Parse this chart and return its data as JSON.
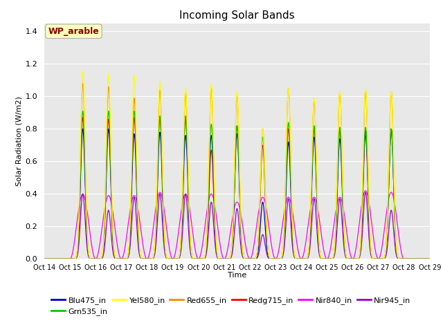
{
  "title": "Incoming Solar Bands",
  "xlabel": "Time",
  "ylabel": "Solar Radiation (W/m2)",
  "ylim": [
    0,
    1.45
  ],
  "yticks": [
    0.0,
    0.2,
    0.4,
    0.6,
    0.8,
    1.0,
    1.2,
    1.4
  ],
  "xtick_labels": [
    "Oct 14",
    "Oct 15",
    "Oct 16",
    "Oct 17",
    "Oct 18",
    "Oct 19",
    "Oct 20",
    "Oct 21",
    "Oct 22",
    "Oct 23",
    "Oct 24",
    "Oct 25",
    "Oct 26",
    "Oct 27",
    "Oct 28",
    "Oct 29"
  ],
  "annotation_text": "WP_arable",
  "annotation_color": "#8B0000",
  "annotation_bg": "#FFFFC0",
  "band_colors": {
    "Blu475_in": "#0000CC",
    "Grn535_in": "#00CC00",
    "Yel580_in": "#FFFF00",
    "Red655_in": "#FF8800",
    "Redg715_in": "#FF0000",
    "Nir840_in": "#FF00FF",
    "Nir945_in": "#9900CC"
  },
  "peak_heights": {
    "Yel580_in": [
      0.0,
      1.16,
      1.14,
      1.13,
      1.09,
      1.05,
      1.08,
      1.03,
      0.8,
      1.05,
      0.99,
      1.03,
      1.05,
      1.03,
      0.0,
      0.0
    ],
    "Red655_in": [
      0.0,
      1.08,
      1.06,
      0.99,
      1.04,
      1.02,
      1.05,
      1.0,
      0.8,
      1.05,
      0.97,
      1.03,
      1.04,
      1.03,
      0.0,
      0.0
    ],
    "Redg715_in": [
      0.0,
      0.87,
      0.86,
      0.87,
      0.87,
      0.86,
      0.67,
      0.82,
      0.7,
      0.8,
      0.8,
      0.8,
      0.76,
      0.8,
      0.0,
      0.0
    ],
    "Nir840_in": [
      0.0,
      0.4,
      0.39,
      0.39,
      0.41,
      0.4,
      0.4,
      0.35,
      0.38,
      0.38,
      0.38,
      0.38,
      0.42,
      0.41,
      0.0,
      0.0
    ],
    "Grn535_in": [
      0.0,
      0.91,
      0.91,
      0.91,
      0.88,
      0.88,
      0.83,
      0.82,
      0.75,
      0.84,
      0.82,
      0.81,
      0.81,
      0.8,
      0.0,
      0.0
    ],
    "Blu475_in": [
      0.0,
      0.8,
      0.8,
      0.77,
      0.78,
      0.76,
      0.76,
      0.77,
      0.35,
      0.72,
      0.75,
      0.74,
      0.8,
      0.8,
      0.0,
      0.0
    ],
    "Nir945_in": [
      0.0,
      0.4,
      0.3,
      0.38,
      0.4,
      0.4,
      0.35,
      0.31,
      0.15,
      0.37,
      0.37,
      0.37,
      0.41,
      0.3,
      0.0,
      0.0
    ]
  },
  "background_color": "#E8E8E8",
  "grid_color": "#FFFFFF",
  "title_fontsize": 11
}
